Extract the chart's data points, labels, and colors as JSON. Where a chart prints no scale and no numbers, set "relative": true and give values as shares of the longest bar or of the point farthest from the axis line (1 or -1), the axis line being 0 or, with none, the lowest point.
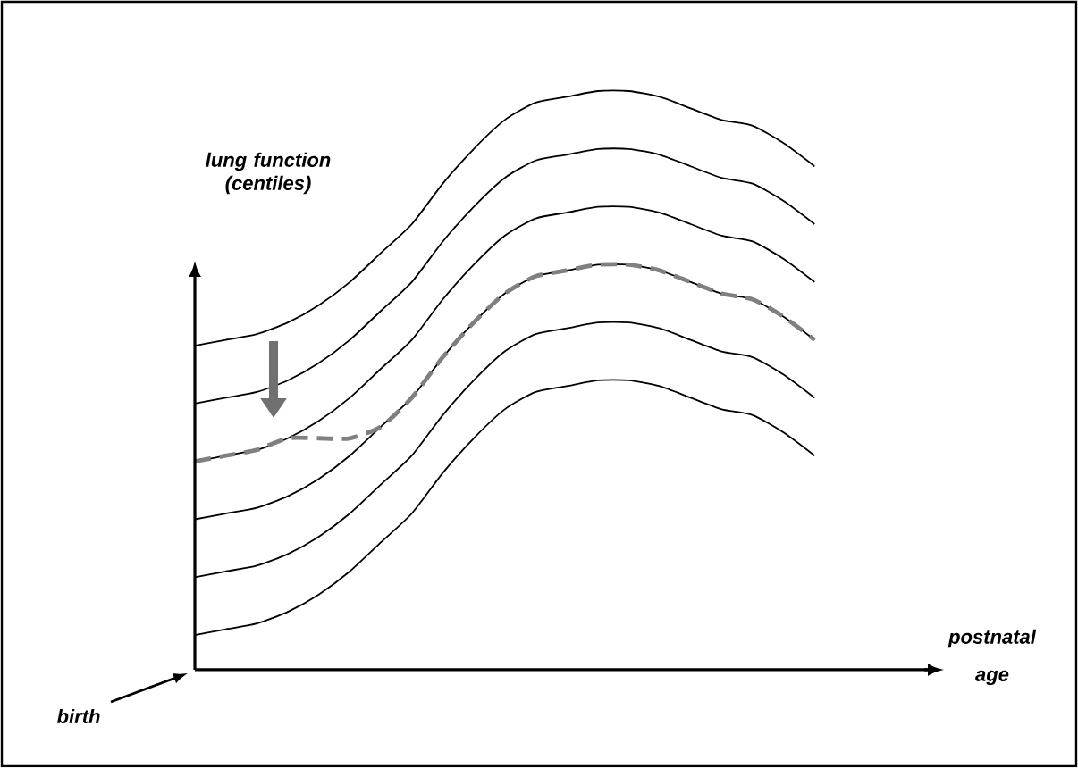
{
  "chart_data": {
    "type": "line",
    "relative": true,
    "ylabel": "lung function (centiles)",
    "xlabel": "postnatal age",
    "annotations": [
      "birth"
    ],
    "categories": [
      null,
      null,
      null,
      null,
      null,
      null,
      null,
      null,
      null,
      null,
      null,
      null,
      null,
      null,
      null,
      null,
      null,
      null,
      null,
      null,
      null,
      null,
      null,
      null,
      null
    ],
    "series": [
      {
        "color": "#000000",
        "values": [
          0.56,
          0.57,
          0.58,
          0.6,
          0.63,
          0.67,
          0.72,
          0.77,
          0.84,
          0.9,
          0.95,
          0.98,
          0.99,
          1.0,
          1.0,
          0.99,
          0.97,
          0.95,
          0.94,
          0.91,
          0.87,
          null,
          null,
          null,
          null
        ]
      },
      {
        "color": "#000000",
        "values": [
          0.46,
          0.47,
          0.48,
          0.5,
          0.53,
          0.57,
          0.62,
          0.67,
          0.74,
          0.8,
          0.85,
          0.88,
          0.89,
          0.9,
          0.9,
          0.89,
          0.87,
          0.85,
          0.84,
          0.81,
          0.77,
          null,
          null,
          null,
          null
        ]
      },
      {
        "color": "#000000",
        "values": [
          0.36,
          0.37,
          0.38,
          0.4,
          0.43,
          0.47,
          0.52,
          0.57,
          0.64,
          0.7,
          0.75,
          0.78,
          0.79,
          0.8,
          0.8,
          0.79,
          0.77,
          0.75,
          0.74,
          0.71,
          0.67,
          null,
          null,
          null,
          null
        ]
      },
      {
        "color": "#000000",
        "values": [
          0.26,
          0.27,
          0.28,
          0.3,
          0.33,
          0.37,
          0.42,
          0.47,
          0.54,
          0.6,
          0.65,
          0.68,
          0.69,
          0.7,
          0.7,
          0.69,
          0.67,
          0.65,
          0.64,
          0.61,
          0.57,
          null,
          null,
          null,
          null
        ]
      },
      {
        "color": "#000000",
        "values": [
          0.16,
          0.17,
          0.18,
          0.2,
          0.23,
          0.27,
          0.32,
          0.37,
          0.44,
          0.5,
          0.55,
          0.58,
          0.59,
          0.6,
          0.6,
          0.59,
          0.57,
          0.55,
          0.54,
          0.51,
          0.47,
          null,
          null,
          null,
          null
        ]
      },
      {
        "color": "#000000",
        "values": [
          0.06,
          0.07,
          0.08,
          0.1,
          0.13,
          0.17,
          0.22,
          0.27,
          0.34,
          0.4,
          0.45,
          0.48,
          0.49,
          0.5,
          0.5,
          0.49,
          0.47,
          0.45,
          0.44,
          0.41,
          0.37,
          null,
          null,
          null,
          null
        ]
      },
      {
        "color": "#808080",
        "line_style": "dashed",
        "values": [
          0.36,
          0.37,
          0.38,
          0.4,
          0.4,
          0.4,
          0.42,
          0.47,
          0.54,
          0.6,
          0.65,
          0.68,
          0.69,
          0.7,
          0.7,
          0.69,
          0.67,
          0.65,
          0.64,
          0.61,
          0.57,
          null,
          null,
          null,
          null
        ]
      }
    ]
  }
}
